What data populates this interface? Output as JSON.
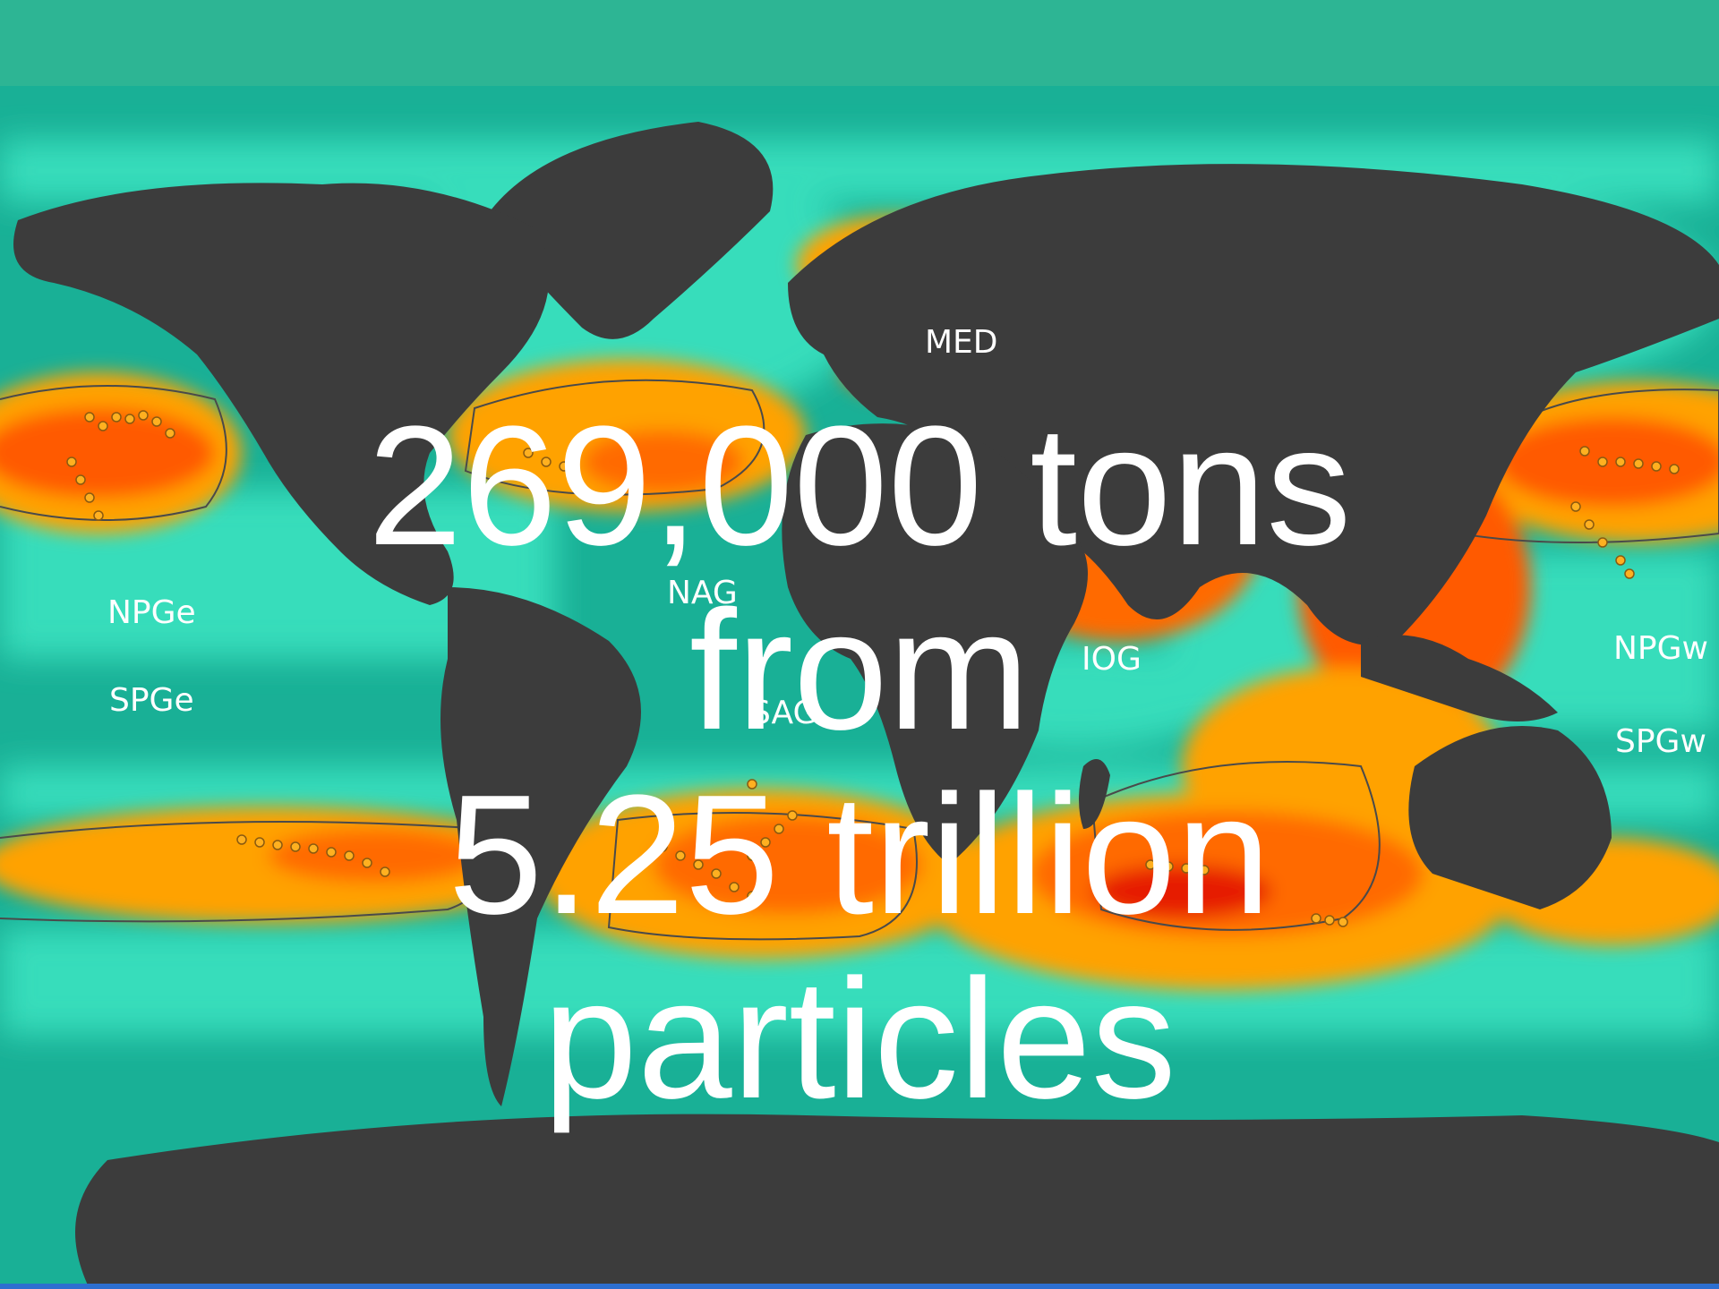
{
  "map": {
    "region_labels": {
      "med": "MED",
      "nag": "NAG",
      "npge": "NPGe",
      "spge": "SPGe",
      "sag": "SAG",
      "iog": "IOG",
      "npgw": "NPGw",
      "spgw": "SPGw"
    },
    "colors": {
      "ocean": "#19b096",
      "ocean_light": "#3be2c0",
      "land": "#3c3c3c",
      "concentration_low": "#ffa200",
      "concentration_mid": "#ff6a00",
      "concentration_high": "#e61a00",
      "top_band": "#2db594"
    }
  },
  "headline": {
    "line1": "269,000 tons",
    "line2": "from",
    "line3": "5.25 trillion",
    "line4": "particles"
  }
}
